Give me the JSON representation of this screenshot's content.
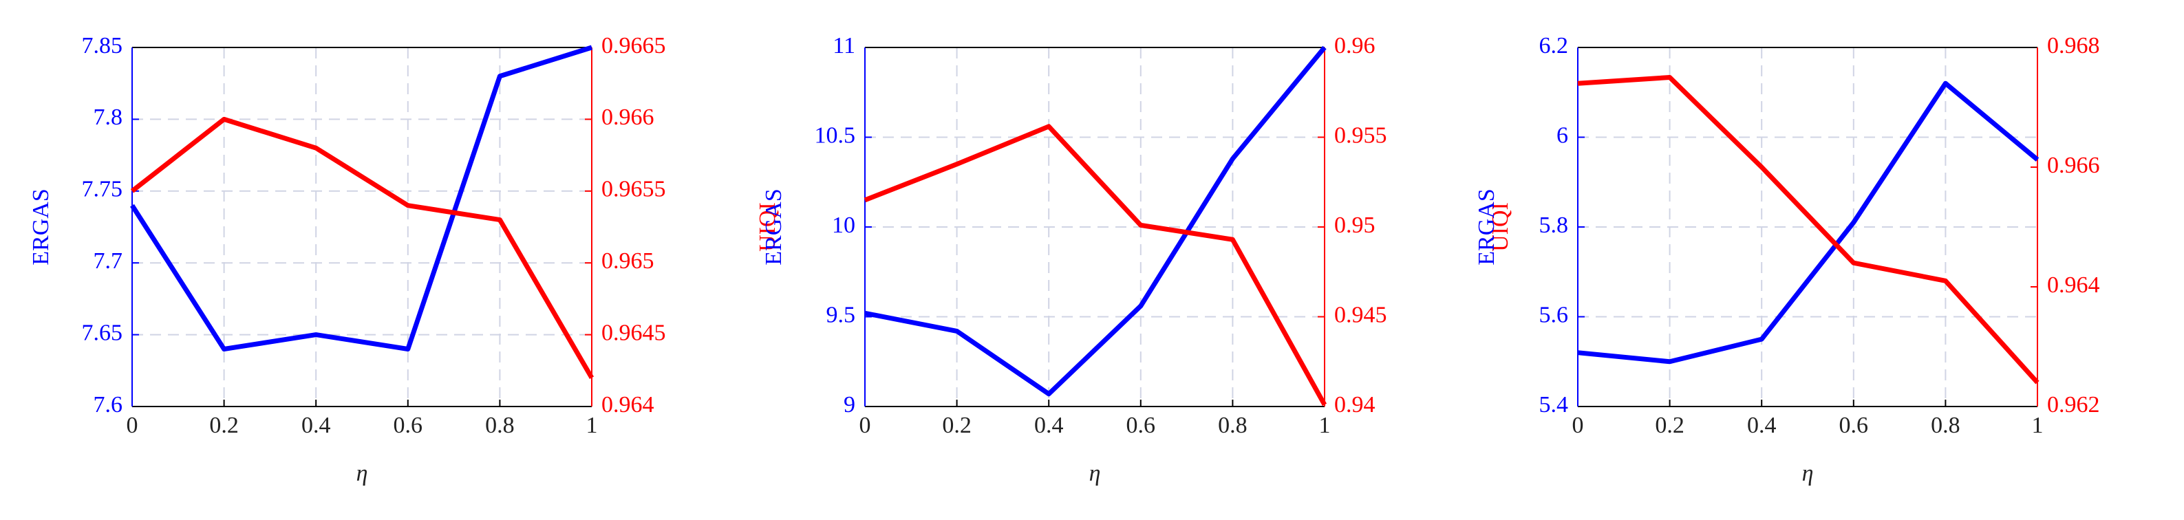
{
  "chart_data": [
    {
      "type": "line",
      "xlabel": "η",
      "x": [
        0,
        0.2,
        0.4,
        0.6,
        0.8,
        1
      ],
      "xlim": [
        0,
        1
      ],
      "xticks": [
        0,
        0.2,
        0.4,
        0.6,
        0.8,
        1
      ],
      "ylim": [
        7.6,
        7.85
      ],
      "yticks": [
        7.6,
        7.65,
        7.7,
        7.75,
        7.8,
        7.85
      ],
      "y2lim": [
        0.964,
        0.9665
      ],
      "y2ticks": [
        0.964,
        0.9645,
        0.965,
        0.9655,
        0.966,
        0.9665
      ],
      "grid": true,
      "series": [
        {
          "name": "ERGAS",
          "color": "#0000ff",
          "values": [
            7.74,
            7.64,
            7.65,
            7.64,
            7.83,
            7.85
          ]
        },
        {
          "name": "UIQI",
          "color": "#ff0000",
          "axis": "y2",
          "values": [
            0.9655,
            0.966,
            0.9658,
            0.9654,
            0.9653,
            0.9642
          ]
        }
      ]
    },
    {
      "type": "line",
      "xlabel": "η",
      "x": [
        0,
        0.2,
        0.4,
        0.6,
        0.8,
        1
      ],
      "xlim": [
        0,
        1
      ],
      "xticks": [
        0,
        0.2,
        0.4,
        0.6,
        0.8,
        1
      ],
      "ylim": [
        9,
        11
      ],
      "yticks": [
        9,
        9.5,
        10,
        10.5,
        11
      ],
      "y2lim": [
        0.94,
        0.96
      ],
      "y2ticks": [
        0.94,
        0.945,
        0.95,
        0.955,
        0.96
      ],
      "grid": true,
      "series": [
        {
          "name": "ERGAS",
          "color": "#0000ff",
          "values": [
            9.52,
            9.42,
            9.07,
            9.56,
            10.38,
            11
          ]
        },
        {
          "name": "UIQI",
          "color": "#ff0000",
          "axis": "y2",
          "values": [
            0.9515,
            0.9535,
            0.9556,
            0.9501,
            0.9493,
            0.9401
          ]
        }
      ]
    },
    {
      "type": "line",
      "xlabel": "η",
      "x": [
        0,
        0.2,
        0.4,
        0.6,
        0.8,
        1
      ],
      "xlim": [
        0,
        1
      ],
      "xticks": [
        0,
        0.2,
        0.4,
        0.6,
        0.8,
        1
      ],
      "ylim": [
        5.4,
        6.2
      ],
      "yticks": [
        5.4,
        5.6,
        5.8,
        6,
        6.2
      ],
      "y2lim": [
        0.962,
        0.968
      ],
      "y2ticks": [
        0.962,
        0.964,
        0.966,
        0.968
      ],
      "grid": true,
      "series": [
        {
          "name": "ERGAS",
          "color": "#0000ff",
          "values": [
            5.52,
            5.5,
            5.55,
            5.81,
            6.12,
            5.95
          ]
        },
        {
          "name": "UIQI",
          "color": "#ff0000",
          "axis": "y2",
          "values": [
            0.9674,
            0.9675,
            0.966,
            0.9644,
            0.9641,
            0.9624
          ]
        }
      ]
    }
  ]
}
